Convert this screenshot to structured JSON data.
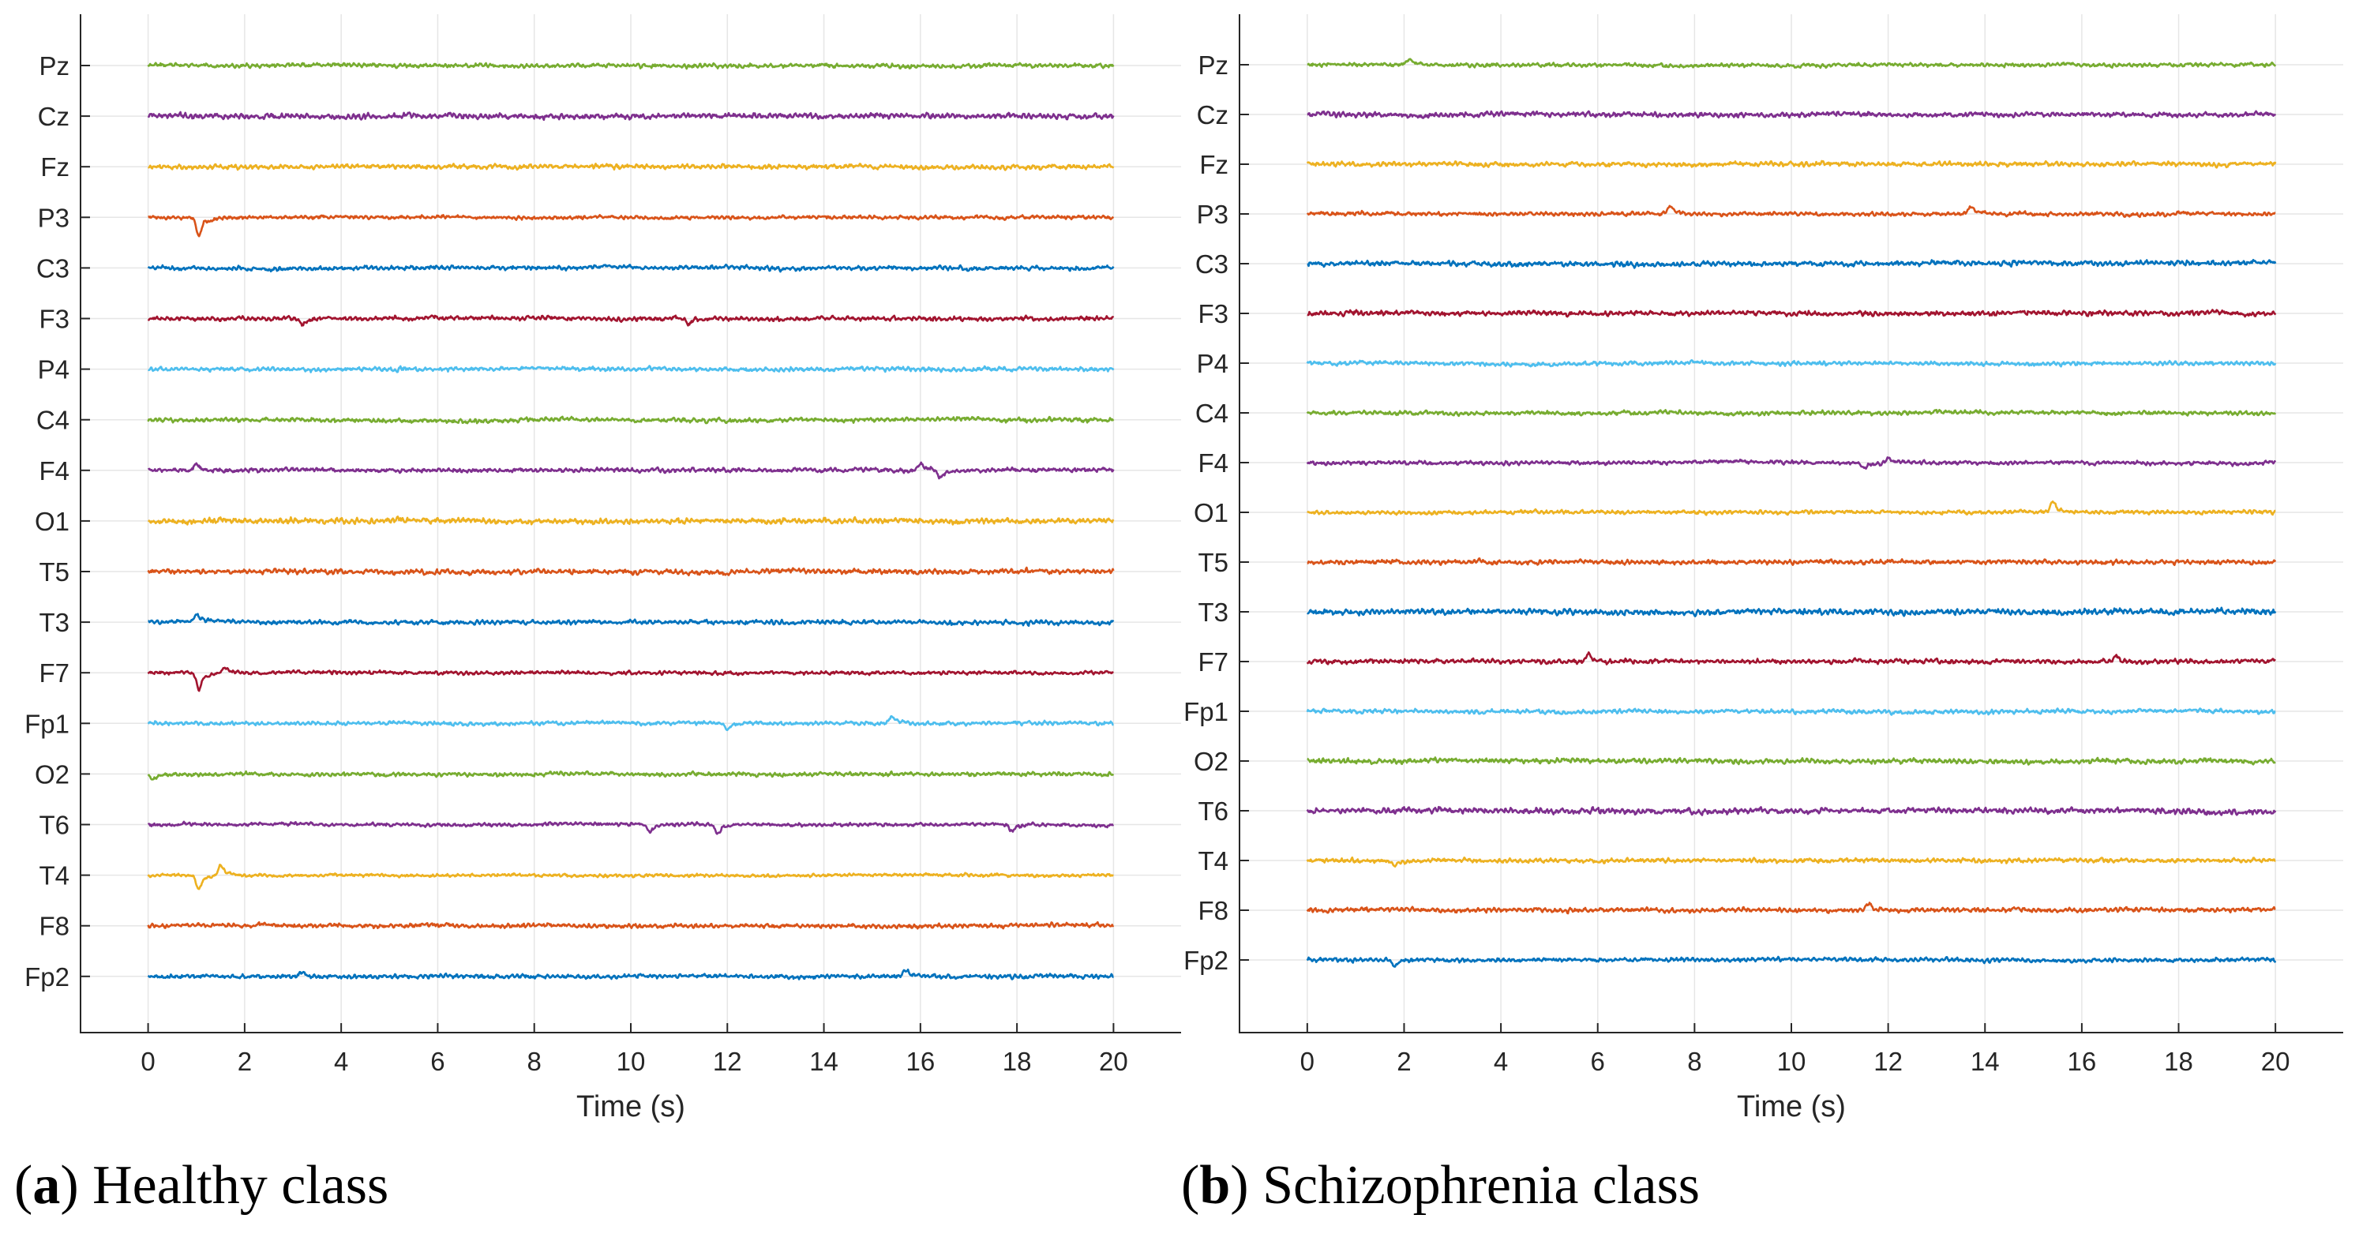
{
  "chart_data": [
    {
      "id": "a",
      "type": "line",
      "title": "",
      "caption_label": "a",
      "caption_text": "Healthy class",
      "xlabel": "Time (s)",
      "ylabel": "",
      "xlim": [
        -1.4,
        21.4
      ],
      "xticks": [
        0,
        2,
        4,
        6,
        8,
        10,
        12,
        14,
        16,
        18,
        20
      ],
      "grid": true,
      "series": [
        {
          "name": "Pz",
          "color": "#77AC30",
          "seed": 11,
          "amp": 0.22,
          "spikes": []
        },
        {
          "name": "Cz",
          "color": "#7E2F8E",
          "seed": 12,
          "amp": 0.28,
          "spikes": []
        },
        {
          "name": "Fz",
          "color": "#EDB120",
          "seed": 13,
          "amp": 0.24,
          "spikes": []
        },
        {
          "name": "P3",
          "color": "#D95319",
          "seed": 14,
          "amp": 0.18,
          "spikes": [
            [
              1.05,
              -0.9
            ]
          ]
        },
        {
          "name": "C3",
          "color": "#0072BD",
          "seed": 15,
          "amp": 0.22,
          "spikes": []
        },
        {
          "name": "F3",
          "color": "#A2142F",
          "seed": 16,
          "amp": 0.22,
          "spikes": [
            [
              3.2,
              -0.3
            ],
            [
              11.2,
              -0.3
            ]
          ]
        },
        {
          "name": "P4",
          "color": "#4DBEEE",
          "seed": 17,
          "amp": 0.22,
          "spikes": []
        },
        {
          "name": "C4",
          "color": "#77AC30",
          "seed": 18,
          "amp": 0.22,
          "spikes": []
        },
        {
          "name": "F4",
          "color": "#7E2F8E",
          "seed": 19,
          "amp": 0.22,
          "spikes": [
            [
              1.0,
              0.3
            ],
            [
              16.0,
              0.35
            ],
            [
              16.4,
              -0.4
            ]
          ]
        },
        {
          "name": "O1",
          "color": "#EDB120",
          "seed": 20,
          "amp": 0.28,
          "spikes": []
        },
        {
          "name": "T5",
          "color": "#D95319",
          "seed": 21,
          "amp": 0.26,
          "spikes": []
        },
        {
          "name": "T3",
          "color": "#0072BD",
          "seed": 22,
          "amp": 0.22,
          "spikes": [
            [
              1.0,
              0.3
            ]
          ]
        },
        {
          "name": "F7",
          "color": "#A2142F",
          "seed": 23,
          "amp": 0.18,
          "spikes": [
            [
              1.05,
              -0.8
            ],
            [
              1.6,
              0.25
            ]
          ]
        },
        {
          "name": "Fp1",
          "color": "#4DBEEE",
          "seed": 24,
          "amp": 0.2,
          "spikes": [
            [
              12.0,
              -0.3
            ],
            [
              15.4,
              0.35
            ]
          ]
        },
        {
          "name": "O2",
          "color": "#77AC30",
          "seed": 25,
          "amp": 0.2,
          "spikes": [
            [
              0.1,
              -0.25
            ]
          ]
        },
        {
          "name": "T6",
          "color": "#7E2F8E",
          "seed": 26,
          "amp": 0.18,
          "spikes": [
            [
              10.4,
              -0.35
            ],
            [
              11.8,
              -0.45
            ],
            [
              17.9,
              -0.35
            ]
          ]
        },
        {
          "name": "T4",
          "color": "#EDB120",
          "seed": 27,
          "amp": 0.16,
          "spikes": [
            [
              1.05,
              -0.7
            ],
            [
              1.5,
              0.5
            ]
          ]
        },
        {
          "name": "F8",
          "color": "#D95319",
          "seed": 28,
          "amp": 0.22,
          "spikes": []
        },
        {
          "name": "Fp2",
          "color": "#0072BD",
          "seed": 29,
          "amp": 0.22,
          "spikes": [
            [
              3.2,
              0.25
            ],
            [
              15.7,
              0.3
            ]
          ]
        }
      ]
    },
    {
      "id": "b",
      "type": "line",
      "title": "",
      "caption_label": "b",
      "caption_text": "Schizophrenia class",
      "xlabel": "Time (s)",
      "ylabel": "",
      "xlim": [
        -1.4,
        21.4
      ],
      "xticks": [
        0,
        2,
        4,
        6,
        8,
        10,
        12,
        14,
        16,
        18,
        20
      ],
      "grid": true,
      "series": [
        {
          "name": "Pz",
          "color": "#77AC30",
          "seed": 31,
          "amp": 0.2,
          "spikes": [
            [
              2.1,
              0.3
            ]
          ]
        },
        {
          "name": "Cz",
          "color": "#7E2F8E",
          "seed": 32,
          "amp": 0.26,
          "spikes": []
        },
        {
          "name": "Fz",
          "color": "#EDB120",
          "seed": 33,
          "amp": 0.24,
          "spikes": []
        },
        {
          "name": "P3",
          "color": "#D95319",
          "seed": 34,
          "amp": 0.2,
          "spikes": [
            [
              7.5,
              0.4
            ],
            [
              13.7,
              0.35
            ]
          ]
        },
        {
          "name": "C3",
          "color": "#0072BD",
          "seed": 35,
          "amp": 0.26,
          "spikes": []
        },
        {
          "name": "F3",
          "color": "#A2142F",
          "seed": 36,
          "amp": 0.26,
          "spikes": []
        },
        {
          "name": "P4",
          "color": "#4DBEEE",
          "seed": 37,
          "amp": 0.22,
          "spikes": []
        },
        {
          "name": "C4",
          "color": "#77AC30",
          "seed": 38,
          "amp": 0.22,
          "spikes": []
        },
        {
          "name": "F4",
          "color": "#7E2F8E",
          "seed": 39,
          "amp": 0.2,
          "spikes": [
            [
              12.0,
              0.3
            ],
            [
              11.5,
              -0.3
            ]
          ]
        },
        {
          "name": "O1",
          "color": "#EDB120",
          "seed": 40,
          "amp": 0.2,
          "spikes": [
            [
              15.4,
              0.5
            ]
          ]
        },
        {
          "name": "T5",
          "color": "#D95319",
          "seed": 41,
          "amp": 0.24,
          "spikes": []
        },
        {
          "name": "T3",
          "color": "#0072BD",
          "seed": 42,
          "amp": 0.3,
          "spikes": []
        },
        {
          "name": "F7",
          "color": "#A2142F",
          "seed": 43,
          "amp": 0.24,
          "spikes": [
            [
              5.8,
              0.35
            ],
            [
              16.7,
              0.3
            ]
          ]
        },
        {
          "name": "Fp1",
          "color": "#4DBEEE",
          "seed": 44,
          "amp": 0.22,
          "spikes": []
        },
        {
          "name": "O2",
          "color": "#77AC30",
          "seed": 45,
          "amp": 0.26,
          "spikes": []
        },
        {
          "name": "T6",
          "color": "#7E2F8E",
          "seed": 46,
          "amp": 0.3,
          "spikes": []
        },
        {
          "name": "T4",
          "color": "#EDB120",
          "seed": 47,
          "amp": 0.22,
          "spikes": [
            [
              1.8,
              -0.3
            ]
          ]
        },
        {
          "name": "F8",
          "color": "#D95319",
          "seed": 48,
          "amp": 0.24,
          "spikes": [
            [
              11.6,
              0.35
            ]
          ]
        },
        {
          "name": "Fp2",
          "color": "#0072BD",
          "seed": 49,
          "amp": 0.22,
          "spikes": [
            [
              1.8,
              -0.35
            ]
          ]
        }
      ]
    }
  ]
}
